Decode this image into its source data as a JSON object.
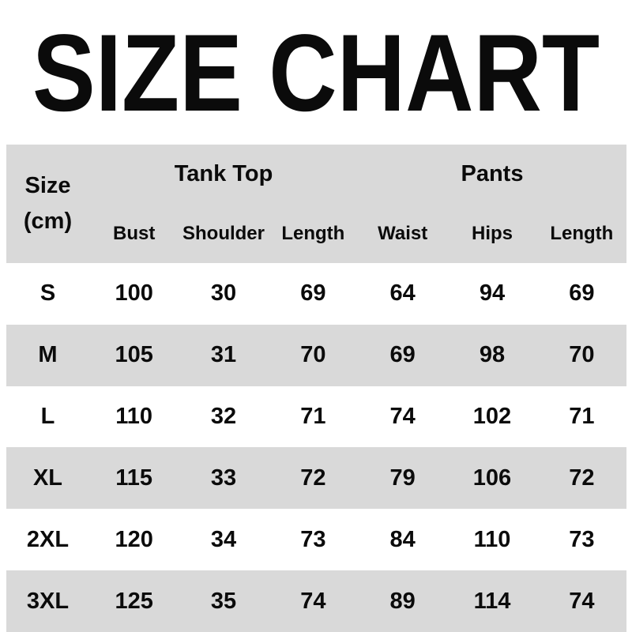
{
  "page": {
    "background_color": "#ffffff",
    "stripe_color": "#d9d9d9",
    "text_color": "#0b0b0b"
  },
  "chart_data": {
    "type": "table",
    "title": "SIZE CHART",
    "size_unit_label": {
      "line1": "Size",
      "line2": "(cm)"
    },
    "groups": [
      {
        "label": "Tank Top",
        "span": 3
      },
      {
        "label": "Pants",
        "span": 3
      }
    ],
    "columns": [
      "Bust",
      "Shoulder",
      "Length",
      "Waist",
      "Hips",
      "Length"
    ],
    "rows": [
      {
        "size": "S",
        "values": [
          100,
          30,
          69,
          64,
          94,
          69
        ]
      },
      {
        "size": "M",
        "values": [
          105,
          31,
          70,
          69,
          98,
          70
        ]
      },
      {
        "size": "L",
        "values": [
          110,
          32,
          71,
          74,
          102,
          71
        ]
      },
      {
        "size": "XL",
        "values": [
          115,
          33,
          72,
          79,
          106,
          72
        ]
      },
      {
        "size": "2XL",
        "values": [
          120,
          34,
          73,
          84,
          110,
          73
        ]
      },
      {
        "size": "3XL",
        "values": [
          125,
          35,
          74,
          89,
          114,
          74
        ]
      }
    ],
    "layout": {
      "stripe_pattern": "header gray, data rows alternate white/gray starting white",
      "grid_lines": "none"
    }
  }
}
